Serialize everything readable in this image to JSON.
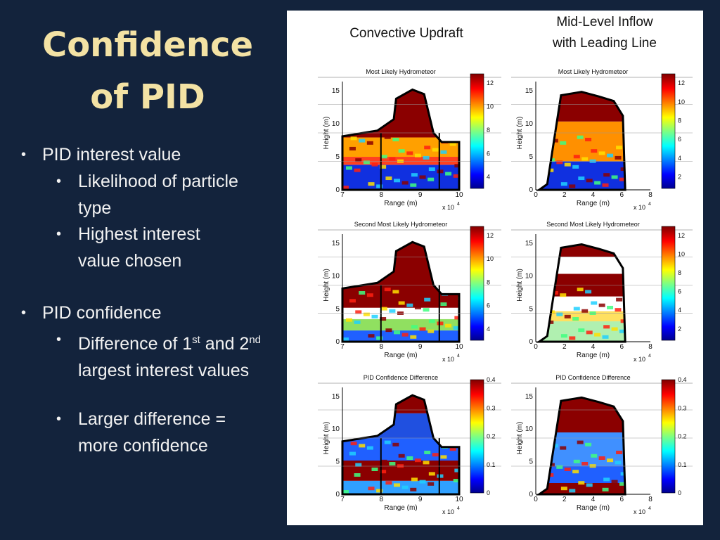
{
  "slide": {
    "title": [
      "Confidence",
      "of PID"
    ],
    "bullets": [
      {
        "text": "PID interest value",
        "sub": [
          {
            "text": "Likelihood of particle type"
          },
          {
            "text": "Highest interest value chosen"
          }
        ]
      },
      {
        "text": "PID confidence",
        "sub": [
          {
            "parts": [
              "Difference of 1",
              "st",
              " and 2",
              "nd",
              " largest interest values"
            ]
          },
          {
            "text": "Larger difference = more confidence"
          }
        ]
      }
    ]
  },
  "figure": {
    "columns": [
      [
        "Convective Updraft"
      ],
      [
        "Mid-Level Inflow",
        "with Leading Line"
      ]
    ],
    "panels": [
      {
        "title": "Most Likely Hydrometeor",
        "ylabel": "Height (m)",
        "xlabel": "Range (m)",
        "xmult": "x 10",
        "xexp": "4",
        "xticks": [
          "7",
          "8",
          "9",
          "10"
        ],
        "yticks": [
          "0",
          "5",
          "10",
          "15"
        ],
        "cticks": [
          "4",
          "6",
          "8",
          "10",
          "12"
        ]
      },
      {
        "title": "Most Likely Hydrometeor",
        "ylabel": "Height (m)",
        "xlabel": "Range (m)",
        "xmult": "x 10",
        "xexp": "4",
        "xticks": [
          "0",
          "2",
          "4",
          "6",
          "8"
        ],
        "yticks": [
          "0",
          "5",
          "10",
          "15"
        ],
        "cticks": [
          "2",
          "4",
          "6",
          "8",
          "10",
          "12"
        ]
      },
      {
        "title": "Second Most Likely Hydrometeor",
        "ylabel": "Height (m)",
        "xlabel": "Range (m)",
        "xmult": "x 10",
        "xexp": "4",
        "xticks": [
          "7",
          "8",
          "9",
          "10"
        ],
        "yticks": [
          "0",
          "5",
          "10",
          "15"
        ],
        "cticks": [
          "4",
          "6",
          "8",
          "10",
          "12"
        ]
      },
      {
        "title": "Second Most Likely Hydrometeor",
        "ylabel": "Height (m)",
        "xlabel": "Range (m)",
        "xmult": "x 10",
        "xexp": "4",
        "xticks": [
          "0",
          "2",
          "4",
          "6",
          "8"
        ],
        "yticks": [
          "0",
          "5",
          "10",
          "15"
        ],
        "cticks": [
          "2",
          "4",
          "6",
          "8",
          "10",
          "12"
        ]
      },
      {
        "title": "PID Confidence Difference",
        "ylabel": "Height (m)",
        "xlabel": "Range (m)",
        "xmult": "x 10",
        "xexp": "4",
        "xticks": [
          "7",
          "8",
          "9",
          "10"
        ],
        "yticks": [
          "0",
          "5",
          "10",
          "15"
        ],
        "cticks": [
          "0",
          "0.1",
          "0.2",
          "0.3",
          "0.4"
        ]
      },
      {
        "title": "PID Confidence Difference",
        "ylabel": "Height (m)",
        "xlabel": "Range (m)",
        "xmult": "x 10",
        "xexp": "4",
        "xticks": [
          "0",
          "2",
          "4",
          "6",
          "8"
        ],
        "yticks": [
          "0",
          "5",
          "10",
          "15"
        ],
        "cticks": [
          "0",
          "0.1",
          "0.2",
          "0.3",
          "0.4"
        ]
      }
    ]
  }
}
